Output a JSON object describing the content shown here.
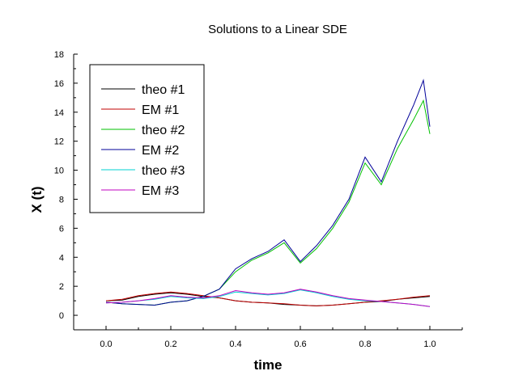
{
  "chart_data": {
    "type": "line",
    "title": "Solutions to a Linear SDE",
    "xlabel": "time",
    "ylabel": "X (t)",
    "xlim": [
      -0.1,
      1.1
    ],
    "ylim": [
      -1,
      18
    ],
    "xticks": [
      "0.0",
      "0.2",
      "0.4",
      "0.6",
      "0.8",
      "1.0"
    ],
    "yticks": [
      "0",
      "2",
      "4",
      "6",
      "8",
      "10",
      "12",
      "14",
      "16",
      "18"
    ],
    "grid": false,
    "legend_position": "top-left",
    "series": [
      {
        "name": "theo #1",
        "color": "#000000",
        "x": [
          0.0,
          0.05,
          0.1,
          0.15,
          0.2,
          0.25,
          0.3,
          0.35,
          0.4,
          0.45,
          0.5,
          0.55,
          0.6,
          0.65,
          0.7,
          0.75,
          0.8,
          0.85,
          0.9,
          0.95,
          1.0
        ],
        "y": [
          1.0,
          1.05,
          1.3,
          1.45,
          1.55,
          1.45,
          1.3,
          1.2,
          1.0,
          0.9,
          0.85,
          0.75,
          0.7,
          0.65,
          0.7,
          0.8,
          0.9,
          0.95,
          1.1,
          1.2,
          1.3
        ]
      },
      {
        "name": "EM #1",
        "color": "#c00000",
        "x": [
          0.0,
          0.05,
          0.1,
          0.15,
          0.2,
          0.25,
          0.3,
          0.35,
          0.4,
          0.45,
          0.5,
          0.55,
          0.6,
          0.65,
          0.7,
          0.75,
          0.8,
          0.85,
          0.9,
          0.95,
          1.0
        ],
        "y": [
          1.0,
          1.1,
          1.35,
          1.5,
          1.6,
          1.5,
          1.35,
          1.2,
          1.0,
          0.9,
          0.85,
          0.8,
          0.7,
          0.65,
          0.7,
          0.8,
          0.9,
          1.0,
          1.1,
          1.25,
          1.35
        ]
      },
      {
        "name": "theo #2",
        "color": "#00c000",
        "x": [
          0.0,
          0.05,
          0.1,
          0.15,
          0.2,
          0.25,
          0.3,
          0.35,
          0.4,
          0.45,
          0.5,
          0.55,
          0.6,
          0.65,
          0.7,
          0.75,
          0.8,
          0.85,
          0.9,
          0.95,
          0.98,
          1.0
        ],
        "y": [
          0.9,
          0.8,
          0.75,
          0.7,
          0.9,
          1.0,
          1.3,
          1.8,
          3.0,
          3.8,
          4.3,
          5.0,
          3.6,
          4.6,
          6.0,
          7.8,
          10.5,
          9.0,
          11.5,
          13.5,
          14.8,
          12.5
        ]
      },
      {
        "name": "EM #2",
        "color": "#000099",
        "x": [
          0.0,
          0.05,
          0.1,
          0.15,
          0.2,
          0.25,
          0.3,
          0.35,
          0.4,
          0.45,
          0.5,
          0.55,
          0.6,
          0.65,
          0.7,
          0.75,
          0.8,
          0.85,
          0.9,
          0.95,
          0.98,
          1.0
        ],
        "y": [
          0.9,
          0.8,
          0.75,
          0.7,
          0.9,
          1.0,
          1.3,
          1.8,
          3.2,
          3.9,
          4.4,
          5.2,
          3.7,
          4.8,
          6.2,
          8.0,
          10.9,
          9.2,
          12.0,
          14.5,
          16.2,
          13.0
        ]
      },
      {
        "name": "theo #3",
        "color": "#00d0d0",
        "x": [
          0.0,
          0.05,
          0.1,
          0.15,
          0.2,
          0.25,
          0.3,
          0.35,
          0.4,
          0.45,
          0.5,
          0.55,
          0.6,
          0.65,
          0.7,
          0.75,
          0.8,
          0.85,
          0.9,
          0.95,
          1.0
        ],
        "y": [
          0.85,
          0.9,
          1.0,
          1.1,
          1.3,
          1.2,
          1.15,
          1.3,
          1.6,
          1.5,
          1.4,
          1.5,
          1.75,
          1.55,
          1.3,
          1.1,
          1.0,
          0.95,
          0.85,
          0.75,
          0.6
        ]
      },
      {
        "name": "EM #3",
        "color": "#c000c0",
        "x": [
          0.0,
          0.05,
          0.1,
          0.15,
          0.2,
          0.25,
          0.3,
          0.35,
          0.4,
          0.45,
          0.5,
          0.55,
          0.6,
          0.65,
          0.7,
          0.75,
          0.8,
          0.85,
          0.9,
          0.95,
          1.0
        ],
        "y": [
          0.85,
          0.9,
          1.0,
          1.15,
          1.35,
          1.25,
          1.2,
          1.35,
          1.7,
          1.55,
          1.45,
          1.55,
          1.8,
          1.6,
          1.35,
          1.15,
          1.05,
          0.95,
          0.85,
          0.75,
          0.6
        ]
      }
    ]
  }
}
